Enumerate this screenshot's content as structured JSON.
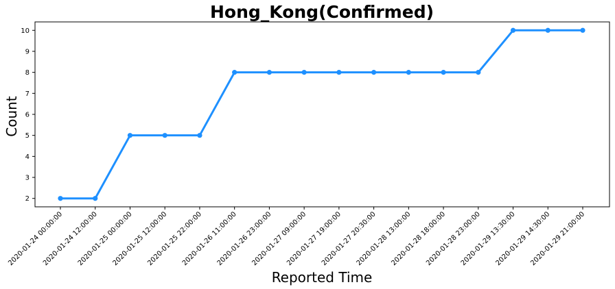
{
  "chart_data": {
    "type": "line",
    "title": "Hong_Kong(Confirmed)",
    "xlabel": "Reported Time",
    "ylabel": "Count",
    "categories": [
      "2020-01-24 00:00:00",
      "2020-01-24 12:00:00",
      "2020-01-25 00:00:00",
      "2020-01-25 12:00:00",
      "2020-01-25 22:00:00",
      "2020-01-26 11:00:00",
      "2020-01-26 23:00:00",
      "2020-01-27 09:00:00",
      "2020-01-27 19:00:00",
      "2020-01-27 20:30:00",
      "2020-01-28 13:00:00",
      "2020-01-28 18:00:00",
      "2020-01-28 23:00:00",
      "2020-01-29 13:30:00",
      "2020-01-29 14:30:00",
      "2020-01-29 21:00:00"
    ],
    "series": [
      {
        "values": [
          2,
          2,
          5,
          5,
          5,
          8,
          8,
          8,
          8,
          8,
          8,
          8,
          8,
          10,
          10,
          10
        ]
      }
    ],
    "yticks": [
      2,
      3,
      4,
      5,
      6,
      7,
      8,
      9,
      10
    ],
    "ylim": [
      1.6,
      10.4
    ],
    "grid": false,
    "color": "#1e90ff"
  }
}
